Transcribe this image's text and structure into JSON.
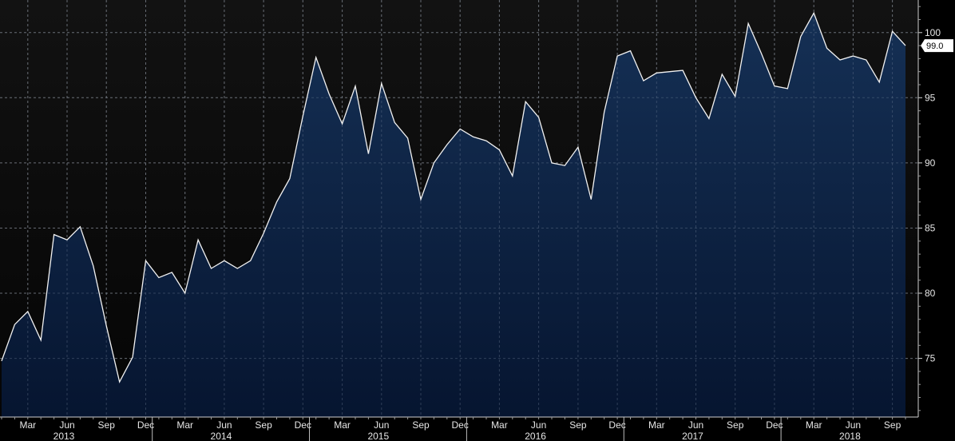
{
  "chart_data": {
    "type": "area",
    "title": "",
    "xlabel": "",
    "ylabel": "",
    "ylim": [
      70.5,
      102.5
    ],
    "y_ticks": [
      75,
      80,
      85,
      90,
      95,
      100
    ],
    "y_axis_side": "right",
    "grid": true,
    "last_value_label": "99.0",
    "x": [
      "2013-01",
      "2013-02",
      "2013-03",
      "2013-04",
      "2013-05",
      "2013-06",
      "2013-07",
      "2013-08",
      "2013-09",
      "2013-10",
      "2013-11",
      "2013-12",
      "2014-01",
      "2014-02",
      "2014-03",
      "2014-04",
      "2014-05",
      "2014-06",
      "2014-07",
      "2014-08",
      "2014-09",
      "2014-10",
      "2014-11",
      "2014-12",
      "2015-01",
      "2015-02",
      "2015-03",
      "2015-04",
      "2015-05",
      "2015-06",
      "2015-07",
      "2015-08",
      "2015-09",
      "2015-10",
      "2015-11",
      "2015-12",
      "2016-01",
      "2016-02",
      "2016-03",
      "2016-04",
      "2016-05",
      "2016-06",
      "2016-07",
      "2016-08",
      "2016-09",
      "2016-10",
      "2016-11",
      "2016-12",
      "2017-01",
      "2017-02",
      "2017-03",
      "2017-04",
      "2017-05",
      "2017-06",
      "2017-07",
      "2017-08",
      "2017-09",
      "2017-10",
      "2017-11",
      "2017-12",
      "2018-01",
      "2018-02",
      "2018-03",
      "2018-04",
      "2018-05",
      "2018-06",
      "2018-07",
      "2018-08",
      "2018-09",
      "2018-10"
    ],
    "values": [
      74.8,
      77.6,
      78.6,
      76.4,
      84.5,
      84.1,
      85.1,
      82.1,
      77.5,
      73.2,
      75.1,
      82.5,
      81.2,
      81.6,
      80.0,
      84.1,
      81.9,
      82.5,
      81.9,
      82.5,
      84.6,
      87.0,
      88.8,
      93.6,
      98.1,
      95.3,
      93.0,
      95.9,
      90.7,
      96.1,
      93.1,
      91.9,
      87.2,
      90.0,
      91.4,
      92.6,
      92.0,
      91.7,
      91.0,
      89.0,
      94.7,
      93.5,
      90.0,
      89.8,
      91.2,
      87.2,
      93.9,
      98.2,
      98.6,
      96.3,
      96.9,
      97.0,
      97.1,
      95.0,
      93.4,
      96.8,
      95.1,
      100.7,
      98.4,
      95.9,
      95.7,
      99.7,
      101.5,
      98.8,
      97.9,
      98.2,
      97.9,
      96.2,
      100.1,
      99.0
    ],
    "x_month_labels": [
      {
        "label": "Mar",
        "x": "2013-03"
      },
      {
        "label": "Jun",
        "x": "2013-06"
      },
      {
        "label": "Sep",
        "x": "2013-09"
      },
      {
        "label": "Dec",
        "x": "2013-12"
      },
      {
        "label": "Mar",
        "x": "2014-03"
      },
      {
        "label": "Jun",
        "x": "2014-06"
      },
      {
        "label": "Sep",
        "x": "2014-09"
      },
      {
        "label": "Dec",
        "x": "2014-12"
      },
      {
        "label": "Mar",
        "x": "2015-03"
      },
      {
        "label": "Jun",
        "x": "2015-06"
      },
      {
        "label": "Sep",
        "x": "2015-09"
      },
      {
        "label": "Dec",
        "x": "2015-12"
      },
      {
        "label": "Mar",
        "x": "2016-03"
      },
      {
        "label": "Jun",
        "x": "2016-06"
      },
      {
        "label": "Sep",
        "x": "2016-09"
      },
      {
        "label": "Dec",
        "x": "2016-12"
      },
      {
        "label": "Mar",
        "x": "2017-03"
      },
      {
        "label": "Jun",
        "x": "2017-06"
      },
      {
        "label": "Sep",
        "x": "2017-09"
      },
      {
        "label": "Dec",
        "x": "2017-12"
      },
      {
        "label": "Mar",
        "x": "2018-03"
      },
      {
        "label": "Jun",
        "x": "2018-06"
      },
      {
        "label": "Sep",
        "x": "2018-09"
      }
    ],
    "x_year_labels": [
      {
        "label": "2013",
        "x": "2013-06"
      },
      {
        "label": "2014",
        "x": "2014-06"
      },
      {
        "label": "2015",
        "x": "2015-06"
      },
      {
        "label": "2016",
        "x": "2016-06"
      },
      {
        "label": "2017",
        "x": "2017-06"
      },
      {
        "label": "2018",
        "x": "2018-06"
      }
    ],
    "colors": {
      "background_top": "#121212",
      "background_bottom": "#050505",
      "fill_top": "#153055",
      "fill_bottom": "#061530",
      "line": "#f2f2f2",
      "grid": "#5a5a5a",
      "badge_bg": "#ffffff"
    }
  }
}
